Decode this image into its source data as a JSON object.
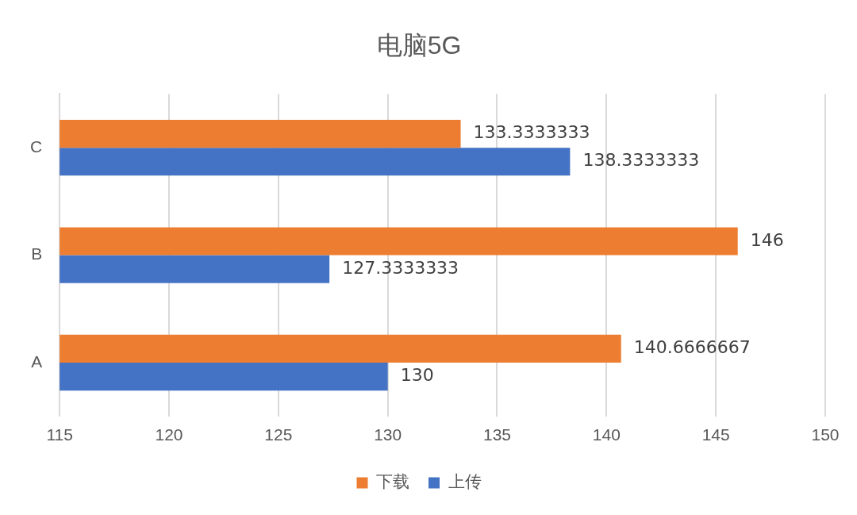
{
  "chart_data": {
    "type": "bar",
    "orientation": "horizontal",
    "title": "电脑5G",
    "categories": [
      "C",
      "B",
      "A"
    ],
    "series": [
      {
        "name": "下载",
        "color": "#ed7d31",
        "values": [
          133.3333333,
          146,
          140.6666667
        ]
      },
      {
        "name": "上传",
        "color": "#4472c4",
        "values": [
          138.3333333,
          127.3333333,
          130
        ]
      }
    ],
    "xlim": [
      115,
      150
    ],
    "xticks": [
      115,
      120,
      125,
      130,
      135,
      140,
      145,
      150
    ],
    "grid": "x",
    "legend": "bottom",
    "data_labels": true
  }
}
